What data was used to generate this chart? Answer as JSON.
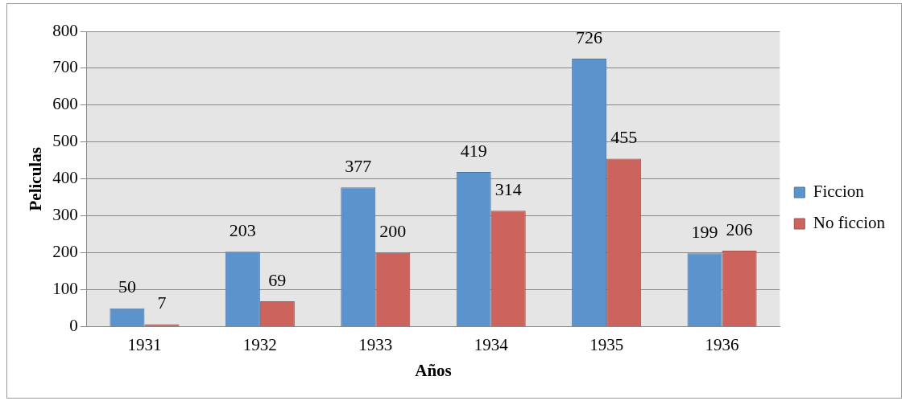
{
  "chart_data": {
    "type": "bar",
    "xlabel": "Años",
    "ylabel": "Peliculas",
    "categories": [
      "1931",
      "1932",
      "1933",
      "1934",
      "1935",
      "1936"
    ],
    "series": [
      {
        "name": "Ficcion",
        "color": "#5b93cd",
        "values": [
          50,
          203,
          377,
          419,
          726,
          199
        ]
      },
      {
        "name": "No ficcion",
        "color": "#cc635c",
        "values": [
          7,
          69,
          200,
          314,
          455,
          206
        ]
      }
    ],
    "ylim": [
      0,
      800
    ],
    "yticks": [
      0,
      100,
      200,
      300,
      400,
      500,
      600,
      700,
      800
    ],
    "grid": "y",
    "legend": "right",
    "data_labels": true
  }
}
